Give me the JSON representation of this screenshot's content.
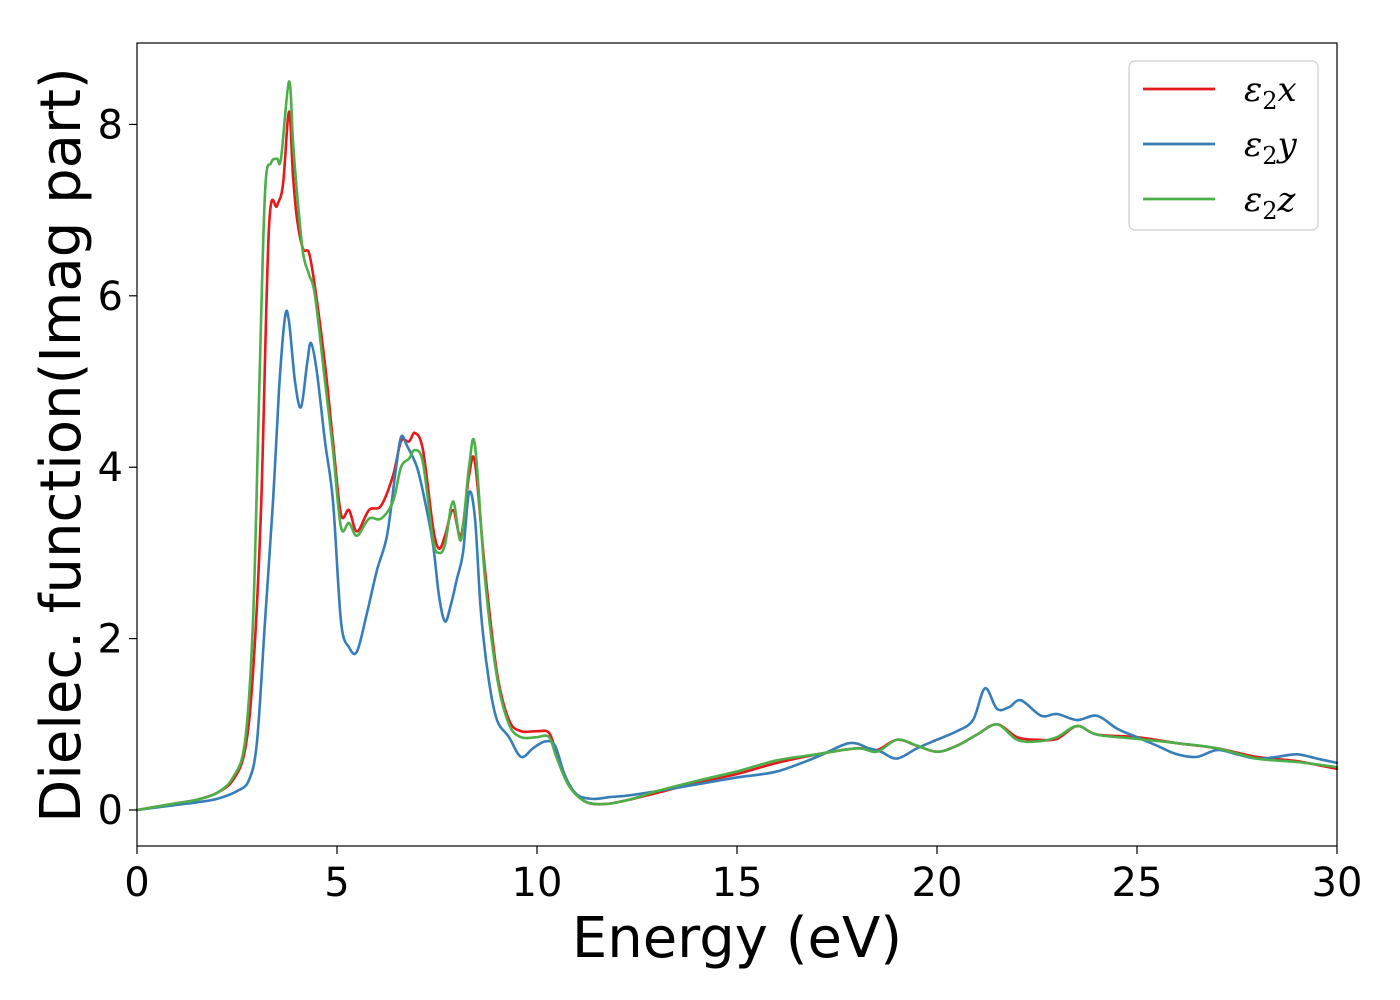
{
  "chart_data": {
    "type": "line",
    "title": "",
    "xlabel": "Energy (eV)",
    "ylabel": "Dielec. function(Imag part)",
    "xlim": [
      0,
      30
    ],
    "ylim": [
      -0.42,
      8.95
    ],
    "xticks": [
      0,
      5,
      10,
      15,
      20,
      25,
      30
    ],
    "yticks": [
      0,
      2,
      4,
      6,
      8
    ],
    "grid": false,
    "legend_position": "top-right",
    "series": [
      {
        "name": "ε₂x",
        "label_main": "ε",
        "label_sub": "2",
        "label_var": "x",
        "color": "#e41a1c",
        "x": [
          0,
          1,
          1.5,
          2,
          2.4,
          2.7,
          2.9,
          3.1,
          3.3,
          3.5,
          3.65,
          3.8,
          3.9,
          4.0,
          4.15,
          4.3,
          4.45,
          4.7,
          4.9,
          5.1,
          5.3,
          5.5,
          5.8,
          6.1,
          6.4,
          6.6,
          6.8,
          6.95,
          7.15,
          7.4,
          7.55,
          7.7,
          7.9,
          8.1,
          8.3,
          8.45,
          8.7,
          9.0,
          9.3,
          9.6,
          10.0,
          10.3,
          10.5,
          10.8,
          11.2,
          11.7,
          12.3,
          13,
          14,
          15,
          16,
          17,
          18,
          18.5,
          19,
          19.5,
          20,
          20.5,
          21,
          21.5,
          22,
          22.5,
          23,
          23.5,
          24,
          25,
          26,
          27,
          28,
          29,
          30
        ],
        "y": [
          0.0,
          0.08,
          0.12,
          0.2,
          0.35,
          0.7,
          1.6,
          3.5,
          6.8,
          7.05,
          7.3,
          8.15,
          7.4,
          6.9,
          6.55,
          6.5,
          6.1,
          5.2,
          4.3,
          3.45,
          3.5,
          3.25,
          3.5,
          3.55,
          3.9,
          4.3,
          4.3,
          4.4,
          4.2,
          3.3,
          3.05,
          3.2,
          3.5,
          3.2,
          3.9,
          4.05,
          2.8,
          1.6,
          1.05,
          0.92,
          0.92,
          0.9,
          0.65,
          0.3,
          0.1,
          0.07,
          0.12,
          0.2,
          0.32,
          0.42,
          0.55,
          0.65,
          0.72,
          0.7,
          0.82,
          0.75,
          0.68,
          0.75,
          0.88,
          1.0,
          0.85,
          0.82,
          0.83,
          0.98,
          0.88,
          0.85,
          0.78,
          0.72,
          0.62,
          0.57,
          0.48
        ]
      },
      {
        "name": "ε₂y",
        "label_main": "ε",
        "label_sub": "2",
        "label_var": "y",
        "color": "#377eb8",
        "x": [
          0,
          1,
          1.5,
          2,
          2.5,
          2.8,
          3.0,
          3.2,
          3.4,
          3.55,
          3.7,
          3.8,
          3.95,
          4.1,
          4.25,
          4.35,
          4.5,
          4.7,
          4.9,
          5.1,
          5.3,
          5.5,
          5.75,
          6.0,
          6.25,
          6.45,
          6.6,
          6.75,
          7.0,
          7.2,
          7.4,
          7.55,
          7.7,
          7.85,
          8.0,
          8.15,
          8.3,
          8.45,
          8.6,
          8.8,
          9.0,
          9.3,
          9.6,
          9.9,
          10.2,
          10.45,
          10.7,
          11.0,
          11.4,
          11.8,
          12.3,
          13,
          14,
          15,
          16,
          17,
          17.8,
          18.3,
          18.6,
          19,
          19.5,
          20,
          20.5,
          20.9,
          21.2,
          21.5,
          21.8,
          22.1,
          22.6,
          23.0,
          23.5,
          24.0,
          24.5,
          25,
          25.5,
          26,
          26.5,
          27,
          27.5,
          28,
          28.5,
          29,
          29.5,
          30
        ],
        "y": [
          0.0,
          0.06,
          0.09,
          0.13,
          0.22,
          0.35,
          0.8,
          2.2,
          3.6,
          4.9,
          5.75,
          5.7,
          5.0,
          4.7,
          5.2,
          5.45,
          5.1,
          4.3,
          3.6,
          2.2,
          1.9,
          1.85,
          2.3,
          2.8,
          3.2,
          3.9,
          4.35,
          4.25,
          4.0,
          3.6,
          3.1,
          2.5,
          2.2,
          2.4,
          2.7,
          3.0,
          3.7,
          3.4,
          2.3,
          1.5,
          1.05,
          0.85,
          0.62,
          0.72,
          0.8,
          0.75,
          0.4,
          0.18,
          0.13,
          0.15,
          0.17,
          0.22,
          0.3,
          0.38,
          0.45,
          0.62,
          0.78,
          0.72,
          0.68,
          0.6,
          0.72,
          0.82,
          0.92,
          1.05,
          1.42,
          1.18,
          1.2,
          1.28,
          1.1,
          1.12,
          1.05,
          1.1,
          0.95,
          0.85,
          0.75,
          0.65,
          0.62,
          0.7,
          0.65,
          0.6,
          0.62,
          0.65,
          0.6,
          0.55
        ]
      },
      {
        "name": "ε₂z",
        "label_main": "ε",
        "label_sub": "2",
        "label_var": "z",
        "color": "#4daf4a",
        "x": [
          0,
          1,
          1.5,
          2,
          2.4,
          2.7,
          2.9,
          3.05,
          3.2,
          3.35,
          3.5,
          3.6,
          3.8,
          3.9,
          4.0,
          4.15,
          4.3,
          4.45,
          4.7,
          4.9,
          5.1,
          5.3,
          5.5,
          5.8,
          6.1,
          6.4,
          6.6,
          6.8,
          6.95,
          7.15,
          7.4,
          7.55,
          7.7,
          7.9,
          8.1,
          8.3,
          8.45,
          8.7,
          9.0,
          9.3,
          9.6,
          10.0,
          10.3,
          10.5,
          10.8,
          11.2,
          11.7,
          12.3,
          13,
          14,
          15,
          16,
          17,
          18,
          18.5,
          19,
          19.5,
          20,
          20.5,
          21,
          21.5,
          22,
          22.5,
          23,
          23.5,
          24,
          25,
          26,
          27,
          28,
          29,
          30
        ],
        "y": [
          0.0,
          0.08,
          0.12,
          0.2,
          0.38,
          0.8,
          2.2,
          4.8,
          7.2,
          7.55,
          7.6,
          7.6,
          8.5,
          7.8,
          7.2,
          6.5,
          6.25,
          6.0,
          5.0,
          4.2,
          3.3,
          3.35,
          3.2,
          3.4,
          3.4,
          3.6,
          4.0,
          4.1,
          4.2,
          4.05,
          3.15,
          3.0,
          3.1,
          3.6,
          3.15,
          4.0,
          4.25,
          2.7,
          1.55,
          1.0,
          0.85,
          0.85,
          0.85,
          0.6,
          0.28,
          0.1,
          0.07,
          0.12,
          0.22,
          0.34,
          0.45,
          0.58,
          0.65,
          0.72,
          0.68,
          0.82,
          0.75,
          0.68,
          0.75,
          0.88,
          1.0,
          0.82,
          0.8,
          0.85,
          0.98,
          0.88,
          0.83,
          0.78,
          0.72,
          0.6,
          0.56,
          0.5
        ]
      }
    ]
  }
}
